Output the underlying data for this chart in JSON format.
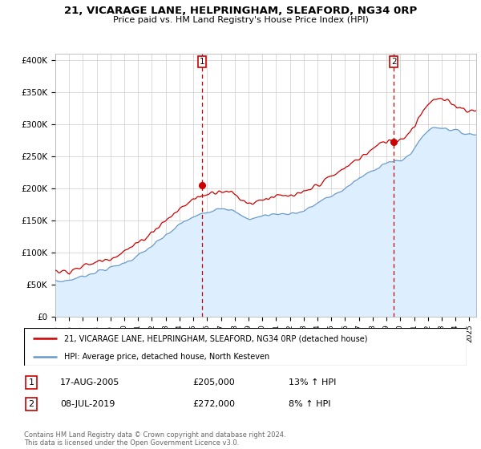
{
  "title": "21, VICARAGE LANE, HELPRINGHAM, SLEAFORD, NG34 0RP",
  "subtitle": "Price paid vs. HM Land Registry's House Price Index (HPI)",
  "ylabel_ticks": [
    "£0",
    "£50K",
    "£100K",
    "£150K",
    "£200K",
    "£250K",
    "£300K",
    "£350K",
    "£400K"
  ],
  "ytick_values": [
    0,
    50000,
    100000,
    150000,
    200000,
    250000,
    300000,
    350000,
    400000
  ],
  "ylim": [
    0,
    410000
  ],
  "xlim_start": 1995.0,
  "xlim_end": 2025.5,
  "legend_line1": "21, VICARAGE LANE, HELPRINGHAM, SLEAFORD, NG34 0RP (detached house)",
  "legend_line2": "HPI: Average price, detached house, North Kesteven",
  "sale1_label": "1",
  "sale1_date": "17-AUG-2005",
  "sale1_price": "£205,000",
  "sale1_hpi": "13% ↑ HPI",
  "sale2_label": "2",
  "sale2_date": "08-JUL-2019",
  "sale2_price": "£272,000",
  "sale2_hpi": "8% ↑ HPI",
  "footnote": "Contains HM Land Registry data © Crown copyright and database right 2024.\nThis data is licensed under the Open Government Licence v3.0.",
  "red_color": "#cc0000",
  "blue_color": "#6699cc",
  "blue_fill": "#ddeeff",
  "marker1_x": 2005.63,
  "marker1_y": 205000,
  "marker2_x": 2019.52,
  "marker2_y": 272000,
  "hpi_annual": [
    55000,
    57000,
    63000,
    70000,
    76000,
    84000,
    95000,
    110000,
    126000,
    143000,
    155000,
    163000,
    170000,
    163000,
    153000,
    157000,
    160000,
    161000,
    165000,
    177000,
    188000,
    200000,
    215000,
    228000,
    240000,
    243000,
    262000,
    290000,
    295000,
    290000,
    285000
  ],
  "red_annual": [
    70000,
    72000,
    78000,
    85000,
    92000,
    102000,
    115000,
    132000,
    150000,
    167000,
    183000,
    191000,
    197000,
    190000,
    178000,
    183000,
    187000,
    188000,
    193000,
    206000,
    218000,
    232000,
    247000,
    261000,
    274000,
    277000,
    298000,
    332000,
    338000,
    330000,
    322000
  ]
}
